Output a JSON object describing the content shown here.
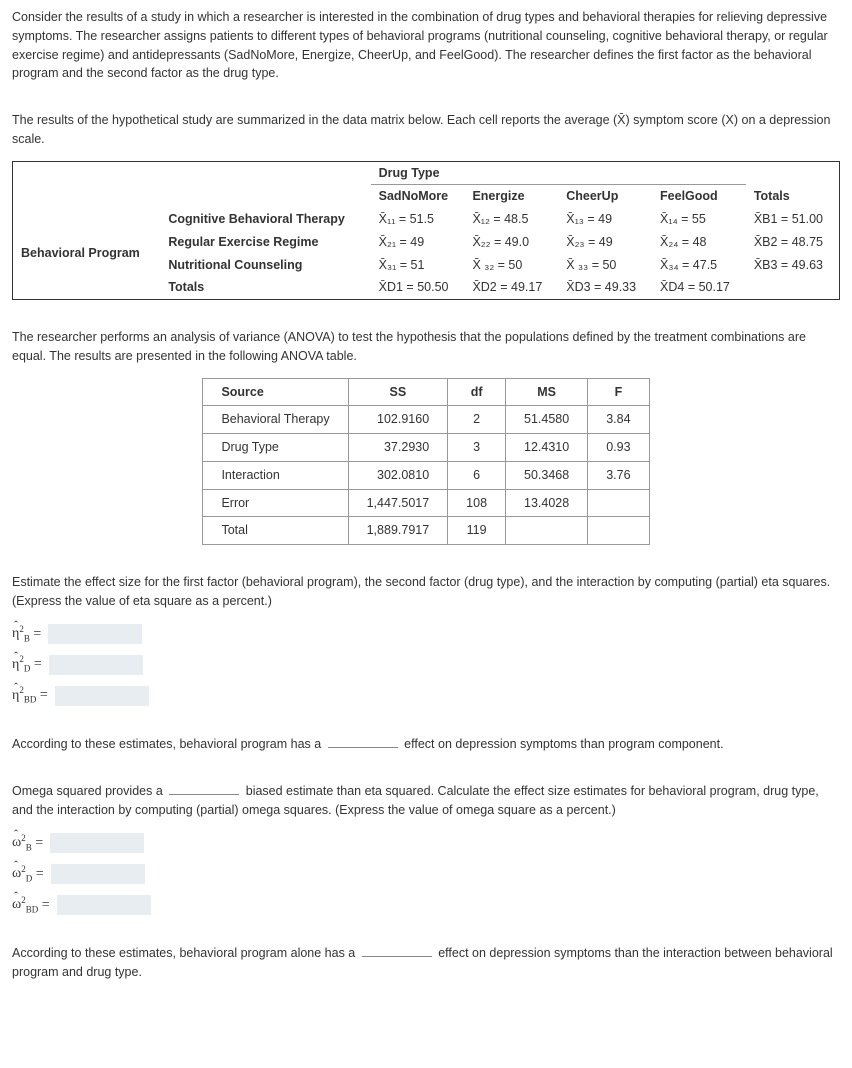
{
  "intro": {
    "p1": "Consider the results of a study in which a researcher is interested in the combination of drug types and behavioral therapies for relieving depressive symptoms. The researcher assigns patients to different types of behavioral programs (nutritional counseling, cognitive behavioral therapy, or regular exercise regime) and antidepressants (SadNoMore, Energize, CheerUp, and FeelGood). The researcher defines the first factor as the behavioral program and the second factor as the drug type.",
    "p2": "The results of the hypothetical study are summarized in the data matrix below. Each cell reports the average (X̄) symptom score (X) on a depression scale."
  },
  "matrix": {
    "drug_type_header": "Drug Type",
    "behavioral_program_header": "Behavioral Program",
    "cols": [
      "SadNoMore",
      "Energize",
      "CheerUp",
      "FeelGood",
      "Totals"
    ],
    "rows": [
      {
        "label": "Cognitive Behavioral Therapy",
        "cells": [
          "X̄₁₁ = 51.5",
          "X̄₁₂ = 48.5",
          "X̄₁₃ = 49",
          "X̄₁₄ = 55",
          "X̄B1 = 51.00"
        ]
      },
      {
        "label": "Regular Exercise Regime",
        "cells": [
          "X̄₂₁ = 49",
          "X̄₂₂ = 49.0",
          "X̄₂₃ = 49",
          "X̄₂₄ = 48",
          "X̄B2 = 48.75"
        ]
      },
      {
        "label": "Nutritional Counseling",
        "cells": [
          "X̄₃₁ = 51",
          "X̄ ₃₂ = 50",
          "X̄ ₃₃ = 50",
          "X̄₃₄ = 47.5",
          "X̄B3 = 49.63"
        ]
      },
      {
        "label": "Totals",
        "cells": [
          "X̄D1 = 50.50",
          "X̄D2 = 49.17",
          "X̄D3 = 49.33",
          "X̄D4 = 50.17",
          ""
        ]
      }
    ]
  },
  "anova_intro": "The researcher performs an analysis of variance (ANOVA) to test the hypothesis that the populations defined by the treatment combinations are equal. The results are presented in the following ANOVA table.",
  "anova": {
    "headers": [
      "Source",
      "SS",
      "df",
      "MS",
      "F"
    ],
    "rows": [
      {
        "src": "Behavioral Therapy",
        "ss": "102.9160",
        "df": "2",
        "ms": "51.4580",
        "f": "3.84"
      },
      {
        "src": "Drug Type",
        "ss": "37.2930",
        "df": "3",
        "ms": "12.4310",
        "f": "0.93"
      },
      {
        "src": "Interaction",
        "ss": "302.0810",
        "df": "6",
        "ms": "50.3468",
        "f": "3.76"
      },
      {
        "src": "Error",
        "ss": "1,447.5017",
        "df": "108",
        "ms": "13.4028",
        "f": ""
      },
      {
        "src": "Total",
        "ss": "1,889.7917",
        "df": "119",
        "ms": "",
        "f": ""
      }
    ]
  },
  "eta_prompt": "Estimate the effect size for the first factor (behavioral program), the second factor (drug type), and the interaction by computing (partial) eta squares. (Express the value of eta square as a percent.)",
  "eta_labels": {
    "b": "η",
    "d": "η",
    "bd": "η"
  },
  "eta_subs": {
    "b": "B",
    "d": "D",
    "bd": "BD"
  },
  "eta_sentence_pre": "According to these estimates, behavioral program has a",
  "eta_sentence_post": "effect on depression symptoms than program component.",
  "omega_prompt_pre": "Omega squared provides a",
  "omega_prompt_post": "biased estimate than eta squared. Calculate the effect size estimates for behavioral program, drug type, and the interaction by computing (partial) omega squares. (Express the value of omega square as a percent.)",
  "omega_labels": {
    "b": "ω",
    "d": "ω",
    "bd": "ω"
  },
  "omega_subs": {
    "b": "B",
    "d": "D",
    "bd": "BD"
  },
  "omega_sentence_pre": "According to these estimates, behavioral program alone has a",
  "omega_sentence_post": "effect on depression symptoms than the interaction between behavioral program and drug type.",
  "eq": " = "
}
